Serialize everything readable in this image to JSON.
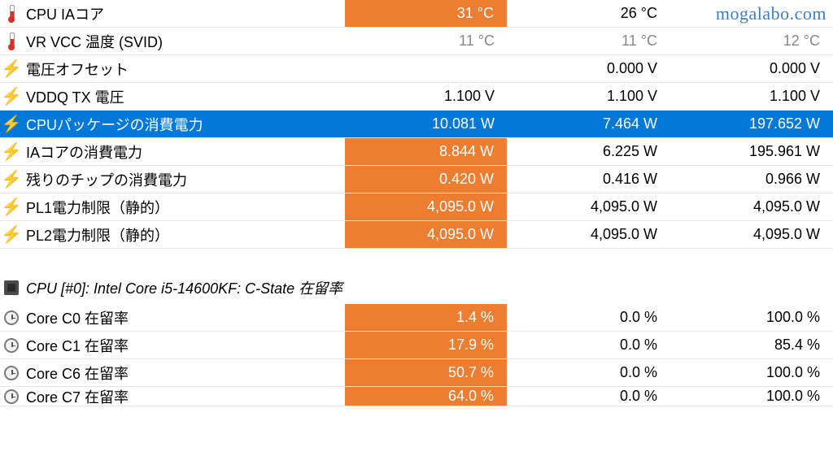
{
  "watermark": "mogalabo.com",
  "colors": {
    "highlight_bg": "#ed7d31",
    "selected_bg": "#0078d7",
    "text": "#222222",
    "text_gray": "#888888",
    "text_white": "#ffffff"
  },
  "rows": [
    {
      "icon": "thermo",
      "label": "CPU IAコア",
      "vals": [
        {
          "text": "31 °C",
          "hl": true
        },
        {
          "text": "26 °C",
          "hl": false
        },
        {
          "text": "",
          "hl": false
        }
      ]
    },
    {
      "icon": "thermo",
      "label": "VR VCC 温度 (SVID)",
      "vals": [
        {
          "text": "11 °C",
          "gray": true
        },
        {
          "text": "11 °C",
          "gray": true
        },
        {
          "text": "12 °C",
          "gray": true
        }
      ]
    },
    {
      "icon": "bolt",
      "label": "電圧オフセット",
      "vals": [
        {
          "text": ""
        },
        {
          "text": "0.000 V"
        },
        {
          "text": "0.000 V"
        }
      ]
    },
    {
      "icon": "bolt",
      "label": "VDDQ TX 電圧",
      "vals": [
        {
          "text": "1.100 V"
        },
        {
          "text": "1.100 V"
        },
        {
          "text": "1.100 V"
        }
      ]
    },
    {
      "icon": "bolt",
      "label": "CPUパッケージの消費電力",
      "selected": true,
      "vals": [
        {
          "text": "10.081 W"
        },
        {
          "text": "7.464 W"
        },
        {
          "text": "197.652 W"
        }
      ]
    },
    {
      "icon": "bolt",
      "label": "IAコアの消費電力",
      "vals": [
        {
          "text": "8.844 W",
          "hl": true
        },
        {
          "text": "6.225 W"
        },
        {
          "text": "195.961 W"
        }
      ]
    },
    {
      "icon": "bolt",
      "label": "残りのチップの消費電力",
      "vals": [
        {
          "text": "0.420 W",
          "hl": true
        },
        {
          "text": "0.416 W"
        },
        {
          "text": "0.966 W"
        }
      ]
    },
    {
      "icon": "bolt",
      "label": "PL1電力制限（静的）",
      "vals": [
        {
          "text": "4,095.0 W",
          "hl": true
        },
        {
          "text": "4,095.0 W"
        },
        {
          "text": "4,095.0 W"
        }
      ]
    },
    {
      "icon": "bolt",
      "label": "PL2電力制限（静的）",
      "vals": [
        {
          "text": "4,095.0 W",
          "hl": true
        },
        {
          "text": "4,095.0 W"
        },
        {
          "text": "4,095.0 W"
        }
      ]
    }
  ],
  "section_header": {
    "icon": "chip",
    "label": "CPU [#0]: Intel Core i5-14600KF: C-State 在留率"
  },
  "rows2": [
    {
      "icon": "clock",
      "label": "Core C0 在留率",
      "vals": [
        {
          "text": "1.4 %",
          "hl": true
        },
        {
          "text": "0.0 %"
        },
        {
          "text": "100.0 %"
        }
      ]
    },
    {
      "icon": "clock",
      "label": "Core C1 在留率",
      "vals": [
        {
          "text": "17.9 %",
          "hl": true
        },
        {
          "text": "0.0 %"
        },
        {
          "text": "85.4 %"
        }
      ]
    },
    {
      "icon": "clock",
      "label": "Core C6 在留率",
      "vals": [
        {
          "text": "50.7 %",
          "hl": true
        },
        {
          "text": "0.0 %"
        },
        {
          "text": "100.0 %"
        }
      ]
    },
    {
      "icon": "clock",
      "label": "Core C7 在留率",
      "partial": true,
      "vals": [
        {
          "text": "64.0 %",
          "hl": true
        },
        {
          "text": "0.0 %"
        },
        {
          "text": "100.0 %"
        }
      ]
    }
  ]
}
